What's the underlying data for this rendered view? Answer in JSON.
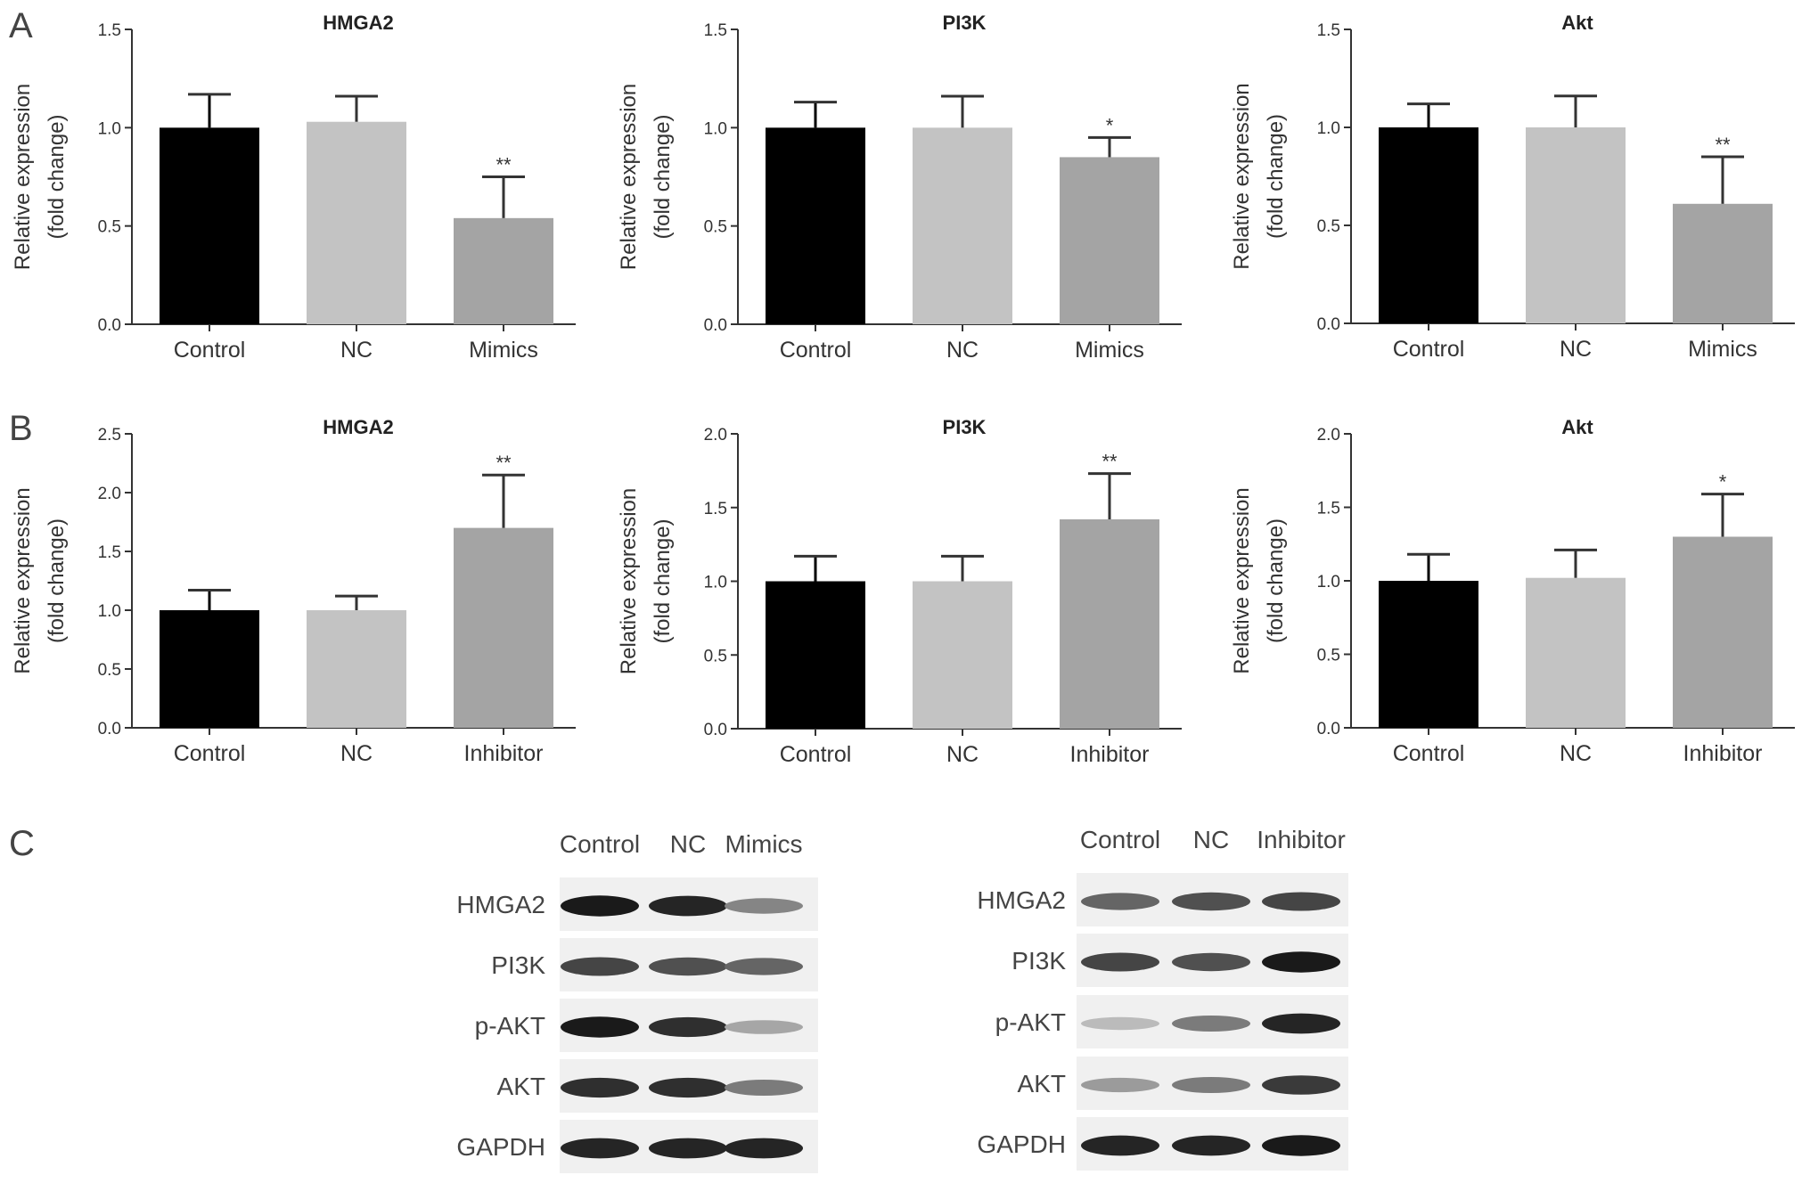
{
  "panel_labels": [
    "A",
    "B",
    "C"
  ],
  "chart_data": [
    {
      "type": "bar",
      "panel": "A",
      "title": "HMGA2",
      "ylabel": "Relative expression\n(fold change)",
      "categories": [
        "Control",
        "NC",
        "Mimics"
      ],
      "values": [
        1.0,
        1.03,
        0.54
      ],
      "errors": [
        0.17,
        0.13,
        0.21
      ],
      "significance": [
        "",
        "",
        "**"
      ],
      "ylim": [
        0,
        1.5
      ],
      "yticks": [
        "0.0",
        "0.5",
        "1.0",
        "1.5"
      ],
      "colors": [
        "#000000",
        "#c3c3c3",
        "#a4a4a4"
      ]
    },
    {
      "type": "bar",
      "panel": "A",
      "title": "PI3K",
      "ylabel": "Relative expression\n(fold change)",
      "categories": [
        "Control",
        "NC",
        "Mimics"
      ],
      "values": [
        1.0,
        1.0,
        0.85
      ],
      "errors": [
        0.13,
        0.16,
        0.1
      ],
      "significance": [
        "",
        "",
        "*"
      ],
      "ylim": [
        0,
        1.5
      ],
      "yticks": [
        "0.0",
        "0.5",
        "1.0",
        "1.5"
      ],
      "colors": [
        "#000000",
        "#c3c3c3",
        "#a4a4a4"
      ]
    },
    {
      "type": "bar",
      "panel": "A",
      "title": "Akt",
      "ylabel": "Relative expression\n(fold change)",
      "categories": [
        "Control",
        "NC",
        "Mimics"
      ],
      "values": [
        1.0,
        1.0,
        0.61
      ],
      "errors": [
        0.12,
        0.16,
        0.24
      ],
      "significance": [
        "",
        "",
        "**"
      ],
      "ylim": [
        0,
        1.5
      ],
      "yticks": [
        "0.0",
        "0.5",
        "1.0",
        "1.5"
      ],
      "colors": [
        "#000000",
        "#c3c3c3",
        "#a4a4a4"
      ]
    },
    {
      "type": "bar",
      "panel": "B",
      "title": "HMGA2",
      "ylabel": "Relative expression\n(fold change)",
      "categories": [
        "Control",
        "NC",
        "Inhibitor"
      ],
      "values": [
        1.0,
        1.0,
        1.7
      ],
      "errors": [
        0.17,
        0.12,
        0.45
      ],
      "significance": [
        "",
        "",
        "**"
      ],
      "ylim": [
        0,
        2.5
      ],
      "yticks": [
        "0.0",
        "0.5",
        "1.0",
        "1.5",
        "2.0",
        "2.5"
      ],
      "colors": [
        "#000000",
        "#c3c3c3",
        "#a4a4a4"
      ]
    },
    {
      "type": "bar",
      "panel": "B",
      "title": "PI3K",
      "ylabel": "Relative expression\n(fold change)",
      "categories": [
        "Control",
        "NC",
        "Inhibitor"
      ],
      "values": [
        1.0,
        1.0,
        1.42
      ],
      "errors": [
        0.17,
        0.17,
        0.31
      ],
      "significance": [
        "",
        "",
        "**"
      ],
      "ylim": [
        0,
        2.0
      ],
      "yticks": [
        "0.0",
        "0.5",
        "1.0",
        "1.5",
        "2.0"
      ],
      "colors": [
        "#000000",
        "#c3c3c3",
        "#a4a4a4"
      ]
    },
    {
      "type": "bar",
      "panel": "B",
      "title": "Akt",
      "ylabel": "Relative expression\n(fold change)",
      "categories": [
        "Control",
        "NC",
        "Inhibitor"
      ],
      "values": [
        1.0,
        1.02,
        1.3
      ],
      "errors": [
        0.18,
        0.19,
        0.29
      ],
      "significance": [
        "",
        "",
        "*"
      ],
      "ylim": [
        0,
        2.0
      ],
      "yticks": [
        "0.0",
        "0.5",
        "1.0",
        "1.5",
        "2.0"
      ],
      "colors": [
        "#000000",
        "#c3c3c3",
        "#a4a4a4"
      ]
    }
  ],
  "western_blots": [
    {
      "lanes": [
        "Control",
        "NC",
        "Mimics"
      ],
      "rows": [
        {
          "label": "HMGA2",
          "intensity": [
            0.95,
            0.9,
            0.45
          ]
        },
        {
          "label": "PI3K",
          "intensity": [
            0.75,
            0.7,
            0.6
          ]
        },
        {
          "label": "p-AKT",
          "intensity": [
            0.95,
            0.85,
            0.3
          ]
        },
        {
          "label": "AKT",
          "intensity": [
            0.85,
            0.85,
            0.5
          ]
        },
        {
          "label": "GAPDH",
          "intensity": [
            0.9,
            0.9,
            0.9
          ]
        }
      ]
    },
    {
      "lanes": [
        "Control",
        "NC",
        "Inhibitor"
      ],
      "rows": [
        {
          "label": "HMGA2",
          "intensity": [
            0.6,
            0.7,
            0.75
          ]
        },
        {
          "label": "PI3K",
          "intensity": [
            0.75,
            0.7,
            0.95
          ]
        },
        {
          "label": "p-AKT",
          "intensity": [
            0.2,
            0.5,
            0.9
          ]
        },
        {
          "label": "AKT",
          "intensity": [
            0.35,
            0.5,
            0.8
          ]
        },
        {
          "label": "GAPDH",
          "intensity": [
            0.9,
            0.9,
            0.95
          ]
        }
      ]
    }
  ]
}
